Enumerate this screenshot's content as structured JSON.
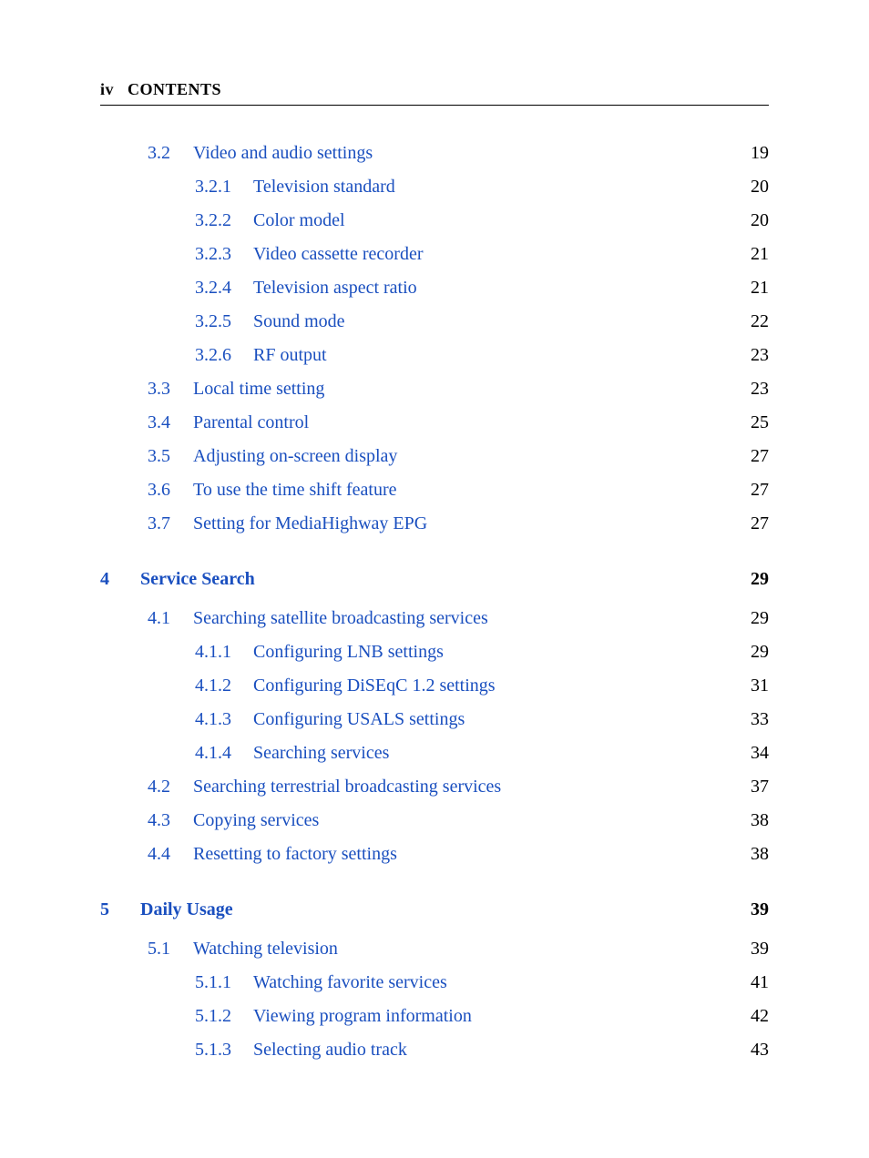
{
  "runningHead": {
    "pageRoman": "iv",
    "label": "CONTENTS"
  },
  "colors": {
    "link": "#1a4fbf",
    "text": "#000000",
    "rule": "#000000",
    "bg": "#ffffff"
  },
  "typography": {
    "body_fontsize": 20,
    "head_fontsize": 18,
    "font_family": "Palatino"
  },
  "toc": [
    {
      "level": "section",
      "num": "3.2",
      "title": "Video and audio settings",
      "page": "19"
    },
    {
      "level": "subsection",
      "num": "3.2.1",
      "title": "Television standard",
      "page": "20"
    },
    {
      "level": "subsection",
      "num": "3.2.2",
      "title": "Color model",
      "page": "20"
    },
    {
      "level": "subsection",
      "num": "3.2.3",
      "title": "Video cassette recorder",
      "page": "21"
    },
    {
      "level": "subsection",
      "num": "3.2.4",
      "title": "Television aspect ratio",
      "page": "21"
    },
    {
      "level": "subsection",
      "num": "3.2.5",
      "title": "Sound mode",
      "page": "22"
    },
    {
      "level": "subsection",
      "num": "3.2.6",
      "title": "RF output",
      "page": "23"
    },
    {
      "level": "section",
      "num": "3.3",
      "title": "Local time setting",
      "page": "23"
    },
    {
      "level": "section",
      "num": "3.4",
      "title": "Parental control",
      "page": "25"
    },
    {
      "level": "section",
      "num": "3.5",
      "title": "Adjusting on-screen display",
      "page": "27"
    },
    {
      "level": "section",
      "num": "3.6",
      "title": "To use the time shift feature",
      "page": "27"
    },
    {
      "level": "section",
      "num": "3.7",
      "title": "Setting for MediaHighway EPG",
      "page": "27"
    },
    {
      "level": "chapter",
      "num": "4",
      "title": "Service Search",
      "page": "29"
    },
    {
      "level": "section",
      "num": "4.1",
      "title": "Searching satellite broadcasting services",
      "page": "29"
    },
    {
      "level": "subsection",
      "num": "4.1.1",
      "title": "Configuring LNB settings",
      "page": "29"
    },
    {
      "level": "subsection",
      "num": "4.1.2",
      "title": "Configuring DiSEqC 1.2 settings",
      "page": "31"
    },
    {
      "level": "subsection",
      "num": "4.1.3",
      "title": "Configuring USALS settings",
      "page": "33"
    },
    {
      "level": "subsection",
      "num": "4.1.4",
      "title": "Searching services",
      "page": "34"
    },
    {
      "level": "section",
      "num": "4.2",
      "title": "Searching terrestrial broadcasting services",
      "page": "37"
    },
    {
      "level": "section",
      "num": "4.3",
      "title": "Copying services",
      "page": "38"
    },
    {
      "level": "section",
      "num": "4.4",
      "title": "Resetting to factory settings",
      "page": "38"
    },
    {
      "level": "chapter",
      "num": "5",
      "title": "Daily Usage",
      "page": "39"
    },
    {
      "level": "section",
      "num": "5.1",
      "title": "Watching television",
      "page": "39"
    },
    {
      "level": "subsection",
      "num": "5.1.1",
      "title": "Watching favorite services",
      "page": "41"
    },
    {
      "level": "subsection",
      "num": "5.1.2",
      "title": "Viewing program information",
      "page": "42"
    },
    {
      "level": "subsection",
      "num": "5.1.3",
      "title": "Selecting audio track",
      "page": "43"
    }
  ]
}
